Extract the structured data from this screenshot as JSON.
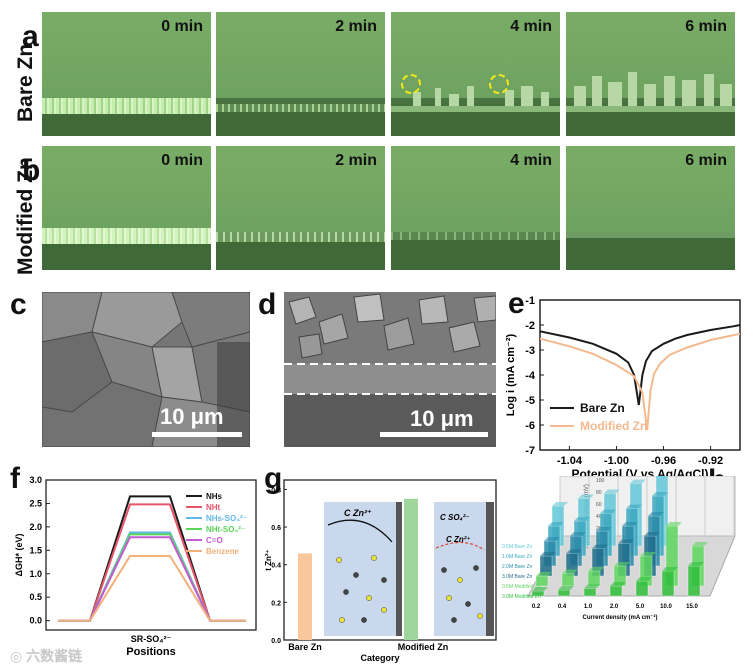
{
  "panels": {
    "a": "a",
    "b": "b",
    "c": "c",
    "d": "d",
    "e": "e",
    "f": "f",
    "g": "g",
    "h": "h"
  },
  "rows": {
    "bare": "Bare Zn",
    "modified": "Modified Zn"
  },
  "times": [
    "0 min",
    "2 min",
    "4 min",
    "6 min"
  ],
  "sem": {
    "scale_c": "10 μm",
    "scale_d": "10 μm"
  },
  "chart_data": [
    {
      "id": "e",
      "type": "line",
      "xlabel": "Potential (V vs Ag/AgCl)",
      "ylabel": "Log i (mA cm⁻²)",
      "xlim": [
        -1.065,
        -0.895
      ],
      "ylim": [
        -7,
        -1
      ],
      "xticks": [
        "-1.04",
        "-1.00",
        "-0.96",
        "-0.92"
      ],
      "xtick_values": [
        -1.04,
        -1.0,
        -0.96,
        -0.92
      ],
      "yticks": [
        "-7",
        "-6",
        "-5",
        "-4",
        "-3",
        "-2",
        "-1"
      ],
      "ytick_values": [
        -7,
        -6,
        -5,
        -4,
        -3,
        -2,
        -1
      ],
      "series": [
        {
          "name": "Bare Zn",
          "color": "#1a1a1a",
          "x": [
            -1.065,
            -1.04,
            -1.02,
            -1.0,
            -0.99,
            -0.985,
            -0.981,
            -0.978,
            -0.975,
            -0.97,
            -0.96,
            -0.95,
            -0.94,
            -0.92,
            -0.9,
            -0.895
          ],
          "y": [
            -2.25,
            -2.5,
            -2.75,
            -3.15,
            -3.5,
            -4.0,
            -5.2,
            -4.0,
            -3.45,
            -3.05,
            -2.75,
            -2.55,
            -2.4,
            -2.2,
            -2.05,
            -2.0
          ]
        },
        {
          "name": "Modified Zn",
          "color": "#f4b98e",
          "x": [
            -1.065,
            -1.04,
            -1.02,
            -1.0,
            -0.985,
            -0.978,
            -0.974,
            -0.971,
            -0.968,
            -0.963,
            -0.955,
            -0.94,
            -0.92,
            -0.9,
            -0.895
          ],
          "y": [
            -2.55,
            -2.85,
            -3.15,
            -3.6,
            -4.05,
            -4.7,
            -6.2,
            -4.6,
            -3.95,
            -3.55,
            -3.2,
            -2.9,
            -2.6,
            -2.4,
            -2.35
          ]
        }
      ]
    },
    {
      "id": "f",
      "type": "line",
      "xlabel": "Positions",
      "xcategory": "SR-SO₄²⁻",
      "ylabel": "ΔGH* (eV)",
      "ylim": [
        -0.2,
        3.0
      ],
      "yticks": [
        "0.0",
        "0.5",
        "1.0",
        "1.5",
        "2.0",
        "2.5",
        "3.0"
      ],
      "ytick_values": [
        0,
        0.5,
        1.0,
        1.5,
        2.0,
        2.5,
        3.0
      ],
      "series": [
        {
          "name": "NHs",
          "color": "#1a1a1a",
          "value": 2.65
        },
        {
          "name": "NHt",
          "color": "#e8556b",
          "value": 2.48
        },
        {
          "name": "NHs-SO₄²⁻",
          "color": "#5fb8e8",
          "value": 1.88
        },
        {
          "name": "NHt-SO₄²⁻",
          "color": "#5ad65a",
          "value": 1.84
        },
        {
          "name": "C=O",
          "color": "#c45ad6",
          "value": 1.78
        },
        {
          "name": "Benzene",
          "color": "#f2b07a",
          "value": 1.38
        }
      ]
    },
    {
      "id": "g",
      "type": "bar",
      "ylabel": "t Zn²⁺",
      "xlabel": "Category",
      "categories": [
        "Bare Zn",
        "Modified Zn"
      ],
      "values": [
        0.46,
        0.75
      ],
      "colors": [
        "#f8c89c",
        "#9ed69c"
      ],
      "ylim": [
        0,
        0.85
      ],
      "yticks": [
        "0.0",
        "0.2",
        "0.4",
        "0.6",
        "0.8"
      ],
      "ytick_values": [
        0,
        0.2,
        0.4,
        0.6,
        0.8
      ],
      "insets": {
        "bare": "C Zn²⁺",
        "mod1": "C SO₄²⁻",
        "mod2": "C Zn²⁺"
      }
    },
    {
      "id": "h",
      "type": "bar",
      "zlabel": "Hysteresis voltage (mV)",
      "xlabel": "Current density (mA cm⁻²)",
      "categories": [
        "0.2",
        "0.4",
        "1.0",
        "2.0",
        "5.0",
        "10.0",
        "15.0"
      ],
      "zticks": [
        "0",
        "20",
        "40",
        "60",
        "80",
        "100",
        "120",
        "140",
        "160",
        "180",
        "200"
      ],
      "series": [
        {
          "name": "0.5M Bare Zn",
          "color": "#62c8d8",
          "values": [
            80,
            95,
            105,
            125,
            180,
            null,
            null
          ]
        },
        {
          "name": "1.0M Bare Zn",
          "color": "#3aa8c0",
          "values": [
            60,
            70,
            85,
            95,
            120,
            null,
            null
          ]
        },
        {
          "name": "2.0M Bare Zn",
          "color": "#2a8aa8",
          "values": [
            50,
            60,
            70,
            80,
            100,
            null,
            null
          ]
        },
        {
          "name": "3.0M Bare Zn",
          "color": "#1f6e8c",
          "values": [
            40,
            45,
            55,
            65,
            80,
            null,
            null
          ]
        },
        {
          "name": "0.5M Modified Zn",
          "color": "#5ed65e",
          "values": [
            20,
            25,
            30,
            40,
            60,
            120,
            80
          ]
        },
        {
          "name": "3.0M Modified Zn",
          "color": "#2fbf3a",
          "values": [
            10,
            12,
            15,
            20,
            30,
            50,
            60
          ]
        }
      ]
    }
  ]
}
